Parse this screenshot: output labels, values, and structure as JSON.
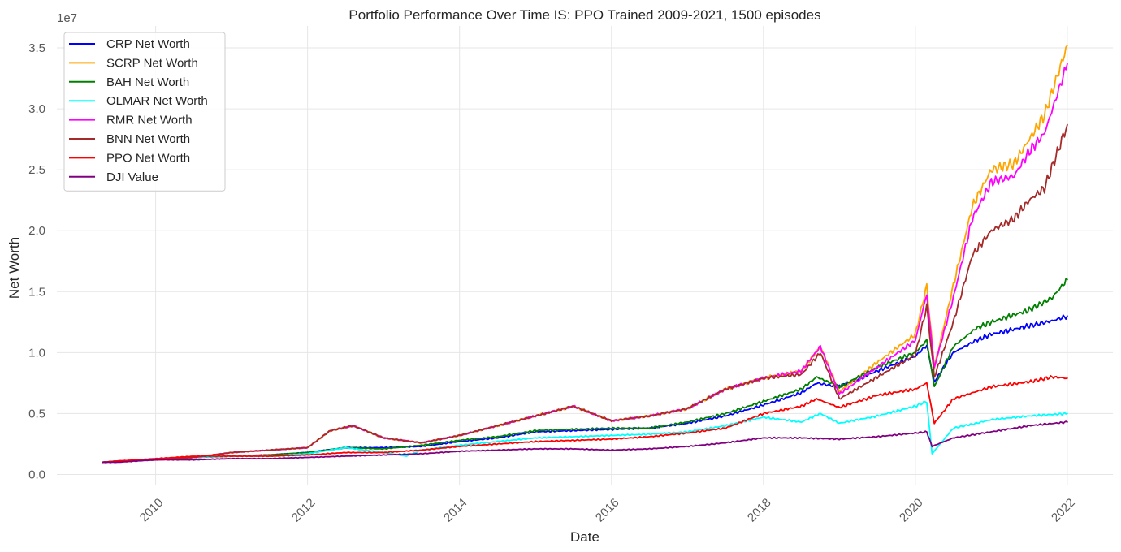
{
  "chart_data": {
    "type": "line",
    "title": "Portfolio Performance Over Time IS: PPO Trained 2009-2021, 1500 episodes",
    "xlabel": "Date",
    "ylabel": "Net Worth",
    "y_offset_label": "1e7",
    "x_ticks": [
      "2010",
      "2012",
      "2014",
      "2016",
      "2018",
      "2020",
      "2022"
    ],
    "y_ticks": [
      "0.0",
      "0.5",
      "1.0",
      "1.5",
      "2.0",
      "2.5",
      "3.0",
      "3.5"
    ],
    "xlim": [
      2008.7,
      2022.6
    ],
    "ylim": [
      -0.09,
      3.68
    ],
    "y_unit_multiplier": 10000000,
    "grid": true,
    "legend_position": "top-left",
    "series": [
      {
        "name": "CRP Net Worth",
        "color": "#0000ff",
        "x": [
          2009.3,
          2009.5,
          2010.0,
          2010.5,
          2011.0,
          2011.5,
          2012.0,
          2012.5,
          2013.0,
          2013.5,
          2014.0,
          2014.5,
          2015.0,
          2015.5,
          2016.0,
          2016.5,
          2017.0,
          2017.5,
          2018.0,
          2018.5,
          2018.7,
          2019.0,
          2019.5,
          2020.0,
          2020.15,
          2020.25,
          2020.5,
          2020.8,
          2021.0,
          2021.5,
          2021.8,
          2022.0
        ],
        "y": [
          0.1,
          0.11,
          0.12,
          0.14,
          0.15,
          0.16,
          0.18,
          0.22,
          0.22,
          0.23,
          0.27,
          0.3,
          0.35,
          0.36,
          0.37,
          0.38,
          0.42,
          0.48,
          0.57,
          0.67,
          0.75,
          0.72,
          0.85,
          0.97,
          1.06,
          0.76,
          1.0,
          1.1,
          1.15,
          1.22,
          1.26,
          1.3
        ]
      },
      {
        "name": "SCRP Net Worth",
        "color": "#ffa500",
        "x": [
          2009.3,
          2009.5,
          2010.0,
          2010.5,
          2011.0,
          2011.5,
          2012.0,
          2012.3,
          2012.6,
          2013.0,
          2013.5,
          2014.0,
          2014.5,
          2015.0,
          2015.5,
          2016.0,
          2016.5,
          2017.0,
          2017.5,
          2018.0,
          2018.5,
          2018.75,
          2019.0,
          2019.5,
          2020.0,
          2020.15,
          2020.25,
          2020.5,
          2020.75,
          2021.0,
          2021.3,
          2021.5,
          2021.7,
          2022.0
        ],
        "y": [
          0.1,
          0.11,
          0.12,
          0.14,
          0.18,
          0.2,
          0.22,
          0.36,
          0.4,
          0.3,
          0.26,
          0.32,
          0.4,
          0.48,
          0.56,
          0.44,
          0.48,
          0.54,
          0.7,
          0.79,
          0.85,
          1.05,
          0.68,
          0.92,
          1.15,
          1.55,
          0.88,
          1.55,
          2.2,
          2.5,
          2.55,
          2.75,
          2.95,
          3.52
        ]
      },
      {
        "name": "BAH Net Worth",
        "color": "#008000",
        "x": [
          2009.3,
          2009.5,
          2010.0,
          2010.5,
          2011.0,
          2011.5,
          2012.0,
          2012.5,
          2013.0,
          2013.5,
          2014.0,
          2014.5,
          2015.0,
          2015.5,
          2016.0,
          2016.5,
          2017.0,
          2017.5,
          2018.0,
          2018.5,
          2018.7,
          2019.0,
          2019.5,
          2020.0,
          2020.15,
          2020.25,
          2020.5,
          2020.8,
          2021.0,
          2021.5,
          2021.8,
          2022.0
        ],
        "y": [
          0.1,
          0.11,
          0.12,
          0.14,
          0.15,
          0.16,
          0.18,
          0.22,
          0.21,
          0.24,
          0.28,
          0.31,
          0.36,
          0.37,
          0.38,
          0.38,
          0.43,
          0.5,
          0.6,
          0.7,
          0.8,
          0.72,
          0.88,
          1.0,
          1.1,
          0.72,
          1.05,
          1.2,
          1.25,
          1.35,
          1.45,
          1.6
        ]
      },
      {
        "name": "OLMAR Net Worth",
        "color": "#00ffff",
        "x": [
          2009.3,
          2009.5,
          2010.0,
          2010.5,
          2011.0,
          2011.5,
          2012.0,
          2012.5,
          2013.0,
          2013.3,
          2013.5,
          2014.0,
          2014.5,
          2015.0,
          2015.5,
          2016.0,
          2016.5,
          2017.0,
          2017.5,
          2018.0,
          2018.5,
          2018.75,
          2019.0,
          2019.5,
          2020.0,
          2020.15,
          2020.22,
          2020.5,
          2020.8,
          2021.0,
          2021.5,
          2022.0
        ],
        "y": [
          0.1,
          0.11,
          0.12,
          0.14,
          0.15,
          0.15,
          0.17,
          0.22,
          0.18,
          0.15,
          0.2,
          0.24,
          0.27,
          0.3,
          0.31,
          0.32,
          0.33,
          0.35,
          0.4,
          0.47,
          0.43,
          0.5,
          0.42,
          0.48,
          0.56,
          0.6,
          0.17,
          0.38,
          0.42,
          0.45,
          0.48,
          0.5
        ]
      },
      {
        "name": "RMR Net Worth",
        "color": "#ff00ff",
        "x": [
          2009.3,
          2009.5,
          2010.0,
          2010.5,
          2011.0,
          2011.5,
          2012.0,
          2012.3,
          2012.6,
          2013.0,
          2013.5,
          2014.0,
          2014.5,
          2015.0,
          2015.5,
          2016.0,
          2016.5,
          2017.0,
          2017.5,
          2018.0,
          2018.5,
          2018.75,
          2019.0,
          2019.5,
          2020.0,
          2020.15,
          2020.25,
          2020.5,
          2020.75,
          2021.0,
          2021.3,
          2021.5,
          2021.7,
          2022.0
        ],
        "y": [
          0.1,
          0.11,
          0.12,
          0.14,
          0.18,
          0.2,
          0.22,
          0.36,
          0.4,
          0.3,
          0.26,
          0.32,
          0.4,
          0.48,
          0.56,
          0.44,
          0.48,
          0.54,
          0.7,
          0.79,
          0.85,
          1.05,
          0.66,
          0.88,
          1.1,
          1.48,
          0.88,
          1.45,
          2.1,
          2.4,
          2.45,
          2.65,
          2.8,
          3.37
        ]
      },
      {
        "name": "BNN Net Worth",
        "color": "#a52a2a",
        "x": [
          2009.3,
          2009.5,
          2010.0,
          2010.5,
          2011.0,
          2011.5,
          2012.0,
          2012.3,
          2012.6,
          2013.0,
          2013.5,
          2014.0,
          2014.5,
          2015.0,
          2015.5,
          2016.0,
          2016.5,
          2017.0,
          2017.5,
          2018.0,
          2018.5,
          2018.75,
          2019.0,
          2019.5,
          2020.0,
          2020.15,
          2020.25,
          2020.5,
          2020.75,
          2021.0,
          2021.3,
          2021.5,
          2021.7,
          2022.0
        ],
        "y": [
          0.1,
          0.11,
          0.12,
          0.14,
          0.18,
          0.2,
          0.22,
          0.36,
          0.4,
          0.3,
          0.26,
          0.32,
          0.4,
          0.48,
          0.56,
          0.44,
          0.48,
          0.54,
          0.7,
          0.79,
          0.82,
          1.0,
          0.62,
          0.8,
          0.98,
          1.38,
          0.8,
          1.25,
          1.8,
          2.0,
          2.1,
          2.25,
          2.35,
          2.87
        ]
      },
      {
        "name": "PPO Net Worth",
        "color": "#ff0000",
        "x": [
          2009.3,
          2009.5,
          2010.0,
          2010.5,
          2011.0,
          2011.5,
          2012.0,
          2012.5,
          2013.0,
          2013.5,
          2014.0,
          2014.5,
          2015.0,
          2015.5,
          2016.0,
          2016.5,
          2017.0,
          2017.5,
          2018.0,
          2018.5,
          2018.7,
          2019.0,
          2019.5,
          2020.0,
          2020.15,
          2020.25,
          2020.5,
          2020.8,
          2021.0,
          2021.5,
          2021.8,
          2022.0
        ],
        "y": [
          0.1,
          0.11,
          0.13,
          0.15,
          0.15,
          0.15,
          0.16,
          0.18,
          0.18,
          0.2,
          0.23,
          0.25,
          0.27,
          0.28,
          0.29,
          0.31,
          0.34,
          0.38,
          0.5,
          0.56,
          0.62,
          0.55,
          0.65,
          0.7,
          0.75,
          0.42,
          0.62,
          0.68,
          0.72,
          0.76,
          0.8,
          0.79
        ]
      },
      {
        "name": "DJI Value",
        "color": "#800080",
        "x": [
          2009.3,
          2009.5,
          2010.0,
          2010.5,
          2011.0,
          2011.5,
          2012.0,
          2012.5,
          2013.0,
          2013.5,
          2014.0,
          2014.5,
          2015.0,
          2015.5,
          2016.0,
          2016.5,
          2017.0,
          2017.5,
          2018.0,
          2018.5,
          2019.0,
          2019.5,
          2020.0,
          2020.15,
          2020.22,
          2020.5,
          2020.8,
          2021.0,
          2021.5,
          2022.0
        ],
        "y": [
          0.1,
          0.1,
          0.12,
          0.12,
          0.13,
          0.13,
          0.14,
          0.15,
          0.16,
          0.17,
          0.19,
          0.2,
          0.21,
          0.21,
          0.2,
          0.21,
          0.23,
          0.26,
          0.3,
          0.3,
          0.29,
          0.31,
          0.34,
          0.35,
          0.23,
          0.3,
          0.33,
          0.35,
          0.4,
          0.43
        ]
      }
    ]
  }
}
